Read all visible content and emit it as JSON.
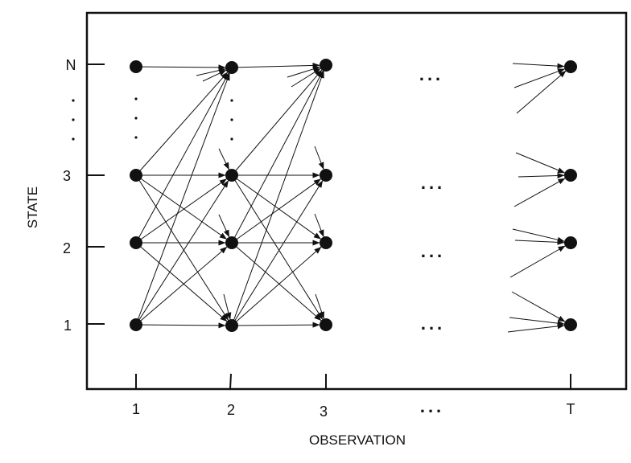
{
  "diagram": {
    "y_axis_title": "STATE",
    "x_axis_title": "OBSERVATION",
    "state_labels": [
      "1",
      "2",
      "3",
      "N"
    ],
    "observation_labels": [
      "1",
      "2",
      "3",
      "T"
    ],
    "ellipsis": "...",
    "colors": {
      "ink": "#111111",
      "background": "#ffffff"
    }
  }
}
